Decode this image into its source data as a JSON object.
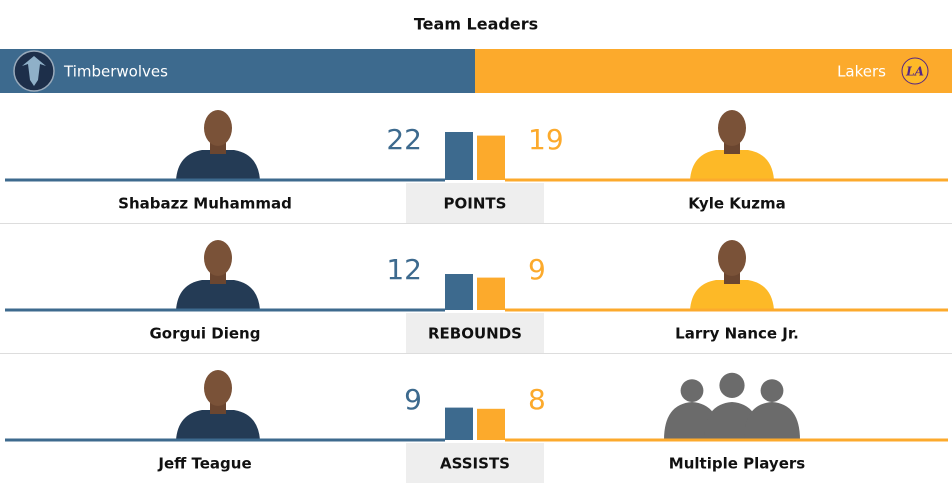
{
  "title": "Team Leaders",
  "teams": {
    "home": "Timberwolves",
    "away": "Lakers"
  },
  "rows": [
    {
      "label": "POINTS",
      "home": {
        "player": "Shabazz Muhammad",
        "value": 22
      },
      "away": {
        "player": "Kyle Kuzma",
        "value": 19
      }
    },
    {
      "label": "REBOUNDS",
      "home": {
        "player": "Gorgui Dieng",
        "value": 12
      },
      "away": {
        "player": "Larry Nance Jr.",
        "value": 9
      }
    },
    {
      "label": "ASSISTS",
      "home": {
        "player": "Jeff Teague",
        "value": 9
      },
      "away": {
        "player": "Multiple Players",
        "value": 8
      }
    }
  ]
}
